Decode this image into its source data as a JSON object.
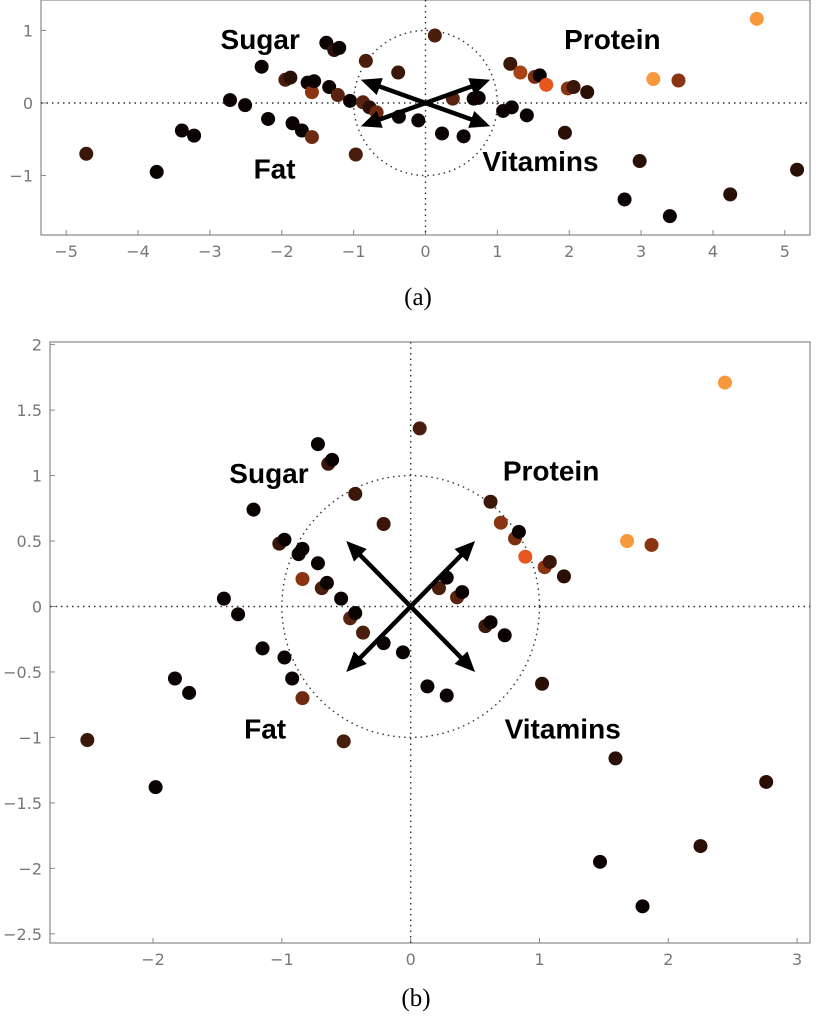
{
  "chart_data": [
    {
      "id": "a",
      "type": "scatter",
      "caption": "(a)",
      "xlim": [
        -5.35,
        5.35
      ],
      "ylim": [
        -1.82,
        1.42
      ],
      "xticks": [
        -5,
        -4,
        -3,
        -2,
        -1,
        0,
        1,
        2,
        3,
        4,
        5
      ],
      "yticks": [
        -1,
        0,
        1
      ],
      "tick_labels_x": [
        "−5",
        "−4",
        "−3",
        "−2",
        "−1",
        "0",
        "1",
        "2",
        "3",
        "4",
        "5"
      ],
      "tick_labels_y": [
        "−1",
        "0",
        "1"
      ],
      "unit_circle": true,
      "arrows": [
        {
          "name": "sugar",
          "x": -0.9,
          "y": 0.32
        },
        {
          "name": "protein",
          "x": 0.9,
          "y": 0.32
        },
        {
          "name": "fat",
          "x": -0.9,
          "y": -0.32
        },
        {
          "name": "vitamins",
          "x": 0.9,
          "y": -0.32
        }
      ],
      "labels": [
        {
          "key": "sugar",
          "text": "Sugar",
          "x": -2.3,
          "y": 0.88
        },
        {
          "key": "protein",
          "text": "Protein",
          "x": 2.6,
          "y": 0.88
        },
        {
          "key": "fat",
          "text": "Fat",
          "x": -2.1,
          "y": -0.9
        },
        {
          "key": "vitamins",
          "text": "Vitamins",
          "x": 1.6,
          "y": -0.8
        }
      ],
      "points": [
        {
          "x": -4.72,
          "y": -0.7,
          "color": "#3a1708"
        },
        {
          "x": -3.74,
          "y": -0.95,
          "color": "#0a0302"
        },
        {
          "x": -3.39,
          "y": -0.38,
          "color": "#0a0302"
        },
        {
          "x": -3.22,
          "y": -0.45,
          "color": "#0a0302"
        },
        {
          "x": -2.72,
          "y": 0.04,
          "color": "#0a0302"
        },
        {
          "x": -2.51,
          "y": -0.03,
          "color": "#0a0302"
        },
        {
          "x": -2.28,
          "y": 0.5,
          "color": "#0a0302"
        },
        {
          "x": -2.19,
          "y": -0.22,
          "color": "#0a0302"
        },
        {
          "x": -1.95,
          "y": 0.32,
          "color": "#4a1e0c"
        },
        {
          "x": -1.88,
          "y": 0.35,
          "color": "#2a0f05"
        },
        {
          "x": -1.85,
          "y": -0.28,
          "color": "#0a0302"
        },
        {
          "x": -1.72,
          "y": -0.38,
          "color": "#0a0302"
        },
        {
          "x": -1.64,
          "y": 0.28,
          "color": "#0a0302"
        },
        {
          "x": -1.58,
          "y": -0.47,
          "color": "#6e2a10"
        },
        {
          "x": -1.58,
          "y": 0.15,
          "color": "#8a3412"
        },
        {
          "x": -1.55,
          "y": 0.3,
          "color": "#0a0302"
        },
        {
          "x": -1.38,
          "y": 0.83,
          "color": "#0a0302"
        },
        {
          "x": -1.34,
          "y": 0.22,
          "color": "#0a0302"
        },
        {
          "x": -1.27,
          "y": 0.73,
          "color": "#2a0f05"
        },
        {
          "x": -1.22,
          "y": 0.11,
          "color": "#5a2210"
        },
        {
          "x": -1.2,
          "y": 0.76,
          "color": "#0a0302"
        },
        {
          "x": -1.05,
          "y": 0.03,
          "color": "#0a0302"
        },
        {
          "x": -0.97,
          "y": -0.71,
          "color": "#4a1e0c"
        },
        {
          "x": -0.87,
          "y": 0.01,
          "color": "#5a2210"
        },
        {
          "x": -0.83,
          "y": 0.58,
          "color": "#4a1e0c"
        },
        {
          "x": -0.78,
          "y": -0.06,
          "color": "#2a0f05"
        },
        {
          "x": -0.68,
          "y": -0.13,
          "color": "#6e2a10"
        },
        {
          "x": -0.38,
          "y": 0.42,
          "color": "#3a1708"
        },
        {
          "x": -0.37,
          "y": -0.19,
          "color": "#0a0302"
        },
        {
          "x": -0.1,
          "y": -0.24,
          "color": "#0a0302"
        },
        {
          "x": 0.13,
          "y": 0.93,
          "color": "#4a1e0c"
        },
        {
          "x": 0.23,
          "y": -0.42,
          "color": "#0a0302"
        },
        {
          "x": 0.38,
          "y": 0.06,
          "color": "#5a2210"
        },
        {
          "x": 0.53,
          "y": -0.46,
          "color": "#0a0302"
        },
        {
          "x": 0.67,
          "y": 0.06,
          "color": "#0a0302"
        },
        {
          "x": 0.74,
          "y": 0.07,
          "color": "#0a0302"
        },
        {
          "x": 1.08,
          "y": -0.11,
          "color": "#0a0302"
        },
        {
          "x": 1.18,
          "y": 0.54,
          "color": "#3a1708"
        },
        {
          "x": 1.2,
          "y": -0.06,
          "color": "#0a0302"
        },
        {
          "x": 1.32,
          "y": 0.42,
          "color": "#a84318"
        },
        {
          "x": 1.41,
          "y": -0.17,
          "color": "#0a0302"
        },
        {
          "x": 1.52,
          "y": 0.36,
          "color": "#7a3010"
        },
        {
          "x": 1.59,
          "y": 0.38,
          "color": "#0a0302"
        },
        {
          "x": 1.68,
          "y": 0.25,
          "color": "#e6561f"
        },
        {
          "x": 1.94,
          "y": -0.41,
          "color": "#2a0f05"
        },
        {
          "x": 1.98,
          "y": 0.2,
          "color": "#8a3412"
        },
        {
          "x": 2.06,
          "y": 0.22,
          "color": "#3a1708"
        },
        {
          "x": 2.25,
          "y": 0.15,
          "color": "#2a0f05"
        },
        {
          "x": 2.77,
          "y": -1.33,
          "color": "#0a0302"
        },
        {
          "x": 2.98,
          "y": -0.8,
          "color": "#2a0f05"
        },
        {
          "x": 3.17,
          "y": 0.33,
          "color": "#f7983c"
        },
        {
          "x": 3.4,
          "y": -1.56,
          "color": "#0a0302"
        },
        {
          "x": 3.52,
          "y": 0.31,
          "color": "#8a3412"
        },
        {
          "x": 4.24,
          "y": -1.26,
          "color": "#2a0f05"
        },
        {
          "x": 4.61,
          "y": 1.16,
          "color": "#f7983c"
        },
        {
          "x": 5.17,
          "y": -0.92,
          "color": "#2a0f05"
        }
      ]
    },
    {
      "id": "b",
      "type": "scatter",
      "caption": "(b)",
      "xlim": [
        -2.8,
        3.1
      ],
      "ylim": [
        -2.57,
        2.02
      ],
      "xticks": [
        -2,
        -1,
        0,
        1,
        2,
        3
      ],
      "yticks": [
        -2.5,
        -2,
        -1.5,
        -1,
        -0.5,
        0,
        0.5,
        1,
        1.5,
        2
      ],
      "tick_labels_x": [
        "−2",
        "−1",
        "0",
        "1",
        "2",
        "3"
      ],
      "tick_labels_y": [
        "−2.5",
        "−2",
        "−1.5",
        "−1",
        "−0.5",
        "0",
        "0.5",
        "1",
        "1.5",
        "2"
      ],
      "unit_circle": true,
      "arrows": [
        {
          "name": "sugar",
          "x": -0.5,
          "y": 0.5
        },
        {
          "name": "protein",
          "x": 0.5,
          "y": 0.5
        },
        {
          "name": "fat",
          "x": -0.5,
          "y": -0.5
        },
        {
          "name": "vitamins",
          "x": 0.5,
          "y": -0.5
        }
      ],
      "labels": [
        {
          "key": "sugar",
          "text": "Sugar",
          "x": -1.1,
          "y": 1.02
        },
        {
          "key": "protein",
          "text": "Protein",
          "x": 1.09,
          "y": 1.04
        },
        {
          "key": "fat",
          "text": "Fat",
          "x": -1.13,
          "y": -0.93
        },
        {
          "key": "vitamins",
          "text": "Vitamins",
          "x": 1.18,
          "y": -0.93
        }
      ],
      "points": [
        {
          "x": -2.51,
          "y": -1.02,
          "color": "#3a1708"
        },
        {
          "x": -1.98,
          "y": -1.38,
          "color": "#0a0302"
        },
        {
          "x": -1.83,
          "y": -0.55,
          "color": "#0a0302"
        },
        {
          "x": -1.72,
          "y": -0.66,
          "color": "#0a0302"
        },
        {
          "x": -1.45,
          "y": 0.06,
          "color": "#0a0302"
        },
        {
          "x": -1.34,
          "y": -0.06,
          "color": "#0a0302"
        },
        {
          "x": -1.22,
          "y": 0.74,
          "color": "#0a0302"
        },
        {
          "x": -1.15,
          "y": -0.32,
          "color": "#0a0302"
        },
        {
          "x": -1.02,
          "y": 0.48,
          "color": "#3a1708"
        },
        {
          "x": -0.98,
          "y": 0.51,
          "color": "#0a0302"
        },
        {
          "x": -0.98,
          "y": -0.39,
          "color": "#0a0302"
        },
        {
          "x": -0.92,
          "y": -0.55,
          "color": "#0a0302"
        },
        {
          "x": -0.87,
          "y": 0.4,
          "color": "#0a0302"
        },
        {
          "x": -0.84,
          "y": 0.44,
          "color": "#0a0302"
        },
        {
          "x": -0.84,
          "y": -0.7,
          "color": "#6e2a10"
        },
        {
          "x": -0.84,
          "y": 0.21,
          "color": "#8a3412"
        },
        {
          "x": -0.72,
          "y": 1.24,
          "color": "#0a0302"
        },
        {
          "x": -0.72,
          "y": 0.33,
          "color": "#0a0302"
        },
        {
          "x": -0.69,
          "y": 0.14,
          "color": "#4a1e0c"
        },
        {
          "x": -0.65,
          "y": 0.18,
          "color": "#0a0302"
        },
        {
          "x": -0.64,
          "y": 1.09,
          "color": "#3a1708"
        },
        {
          "x": -0.61,
          "y": 1.12,
          "color": "#0a0302"
        },
        {
          "x": -0.54,
          "y": 0.06,
          "color": "#0a0302"
        },
        {
          "x": -0.52,
          "y": -1.03,
          "color": "#4a1e0c"
        },
        {
          "x": -0.47,
          "y": -0.09,
          "color": "#5a2210"
        },
        {
          "x": -0.43,
          "y": -0.05,
          "color": "#0a0302"
        },
        {
          "x": -0.43,
          "y": 0.86,
          "color": "#3a1708"
        },
        {
          "x": -0.37,
          "y": -0.2,
          "color": "#4a1e0c"
        },
        {
          "x": -0.21,
          "y": 0.63,
          "color": "#3a1708"
        },
        {
          "x": -0.21,
          "y": -0.28,
          "color": "#0a0302"
        },
        {
          "x": -0.06,
          "y": -0.35,
          "color": "#0a0302"
        },
        {
          "x": 0.07,
          "y": 1.36,
          "color": "#4a1e0c"
        },
        {
          "x": 0.13,
          "y": -0.61,
          "color": "#0a0302"
        },
        {
          "x": 0.22,
          "y": 0.14,
          "color": "#4a1e0c"
        },
        {
          "x": 0.28,
          "y": -0.68,
          "color": "#0a0302"
        },
        {
          "x": 0.28,
          "y": 0.22,
          "color": "#0a0302"
        },
        {
          "x": 0.36,
          "y": 0.07,
          "color": "#5a2210"
        },
        {
          "x": 0.4,
          "y": 0.11,
          "color": "#0a0302"
        },
        {
          "x": 0.58,
          "y": -0.15,
          "color": "#3a1708"
        },
        {
          "x": 0.62,
          "y": 0.8,
          "color": "#3a1708"
        },
        {
          "x": 0.62,
          "y": -0.12,
          "color": "#0a0302"
        },
        {
          "x": 0.7,
          "y": 0.64,
          "color": "#8a3412"
        },
        {
          "x": 0.73,
          "y": -0.22,
          "color": "#0a0302"
        },
        {
          "x": 0.81,
          "y": 0.52,
          "color": "#7a3010"
        },
        {
          "x": 0.84,
          "y": 0.57,
          "color": "#0a0302"
        },
        {
          "x": 0.89,
          "y": 0.38,
          "color": "#e6561f"
        },
        {
          "x": 1.02,
          "y": -0.59,
          "color": "#2a0f05"
        },
        {
          "x": 1.04,
          "y": 0.3,
          "color": "#8a3412"
        },
        {
          "x": 1.08,
          "y": 0.34,
          "color": "#3a1708"
        },
        {
          "x": 1.19,
          "y": 0.23,
          "color": "#2a0f05"
        },
        {
          "x": 1.47,
          "y": -1.95,
          "color": "#0a0302"
        },
        {
          "x": 1.59,
          "y": -1.16,
          "color": "#2a0f05"
        },
        {
          "x": 1.68,
          "y": 0.5,
          "color": "#f7983c"
        },
        {
          "x": 1.8,
          "y": -2.29,
          "color": "#0a0302"
        },
        {
          "x": 1.87,
          "y": 0.47,
          "color": "#8a3412"
        },
        {
          "x": 2.25,
          "y": -1.83,
          "color": "#2a0f05"
        },
        {
          "x": 2.44,
          "y": 1.71,
          "color": "#f7983c"
        },
        {
          "x": 2.76,
          "y": -1.34,
          "color": "#2a0f05"
        }
      ]
    }
  ]
}
